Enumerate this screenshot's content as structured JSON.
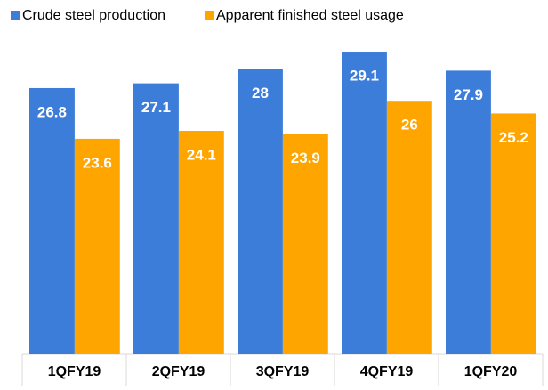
{
  "chart_data": {
    "type": "bar",
    "categories": [
      "1QFY19",
      "2QFY19",
      "3QFY19",
      "4QFY19",
      "1QFY20"
    ],
    "series": [
      {
        "name": "Crude steel production",
        "color": "#3c7dd9",
        "values": [
          26.8,
          27.1,
          28.0,
          29.1,
          27.9
        ]
      },
      {
        "name": "Apparent finished steel usage",
        "color": "#ffa500",
        "values": [
          23.6,
          24.1,
          23.9,
          26.0,
          25.2
        ]
      }
    ],
    "ylim": [
      10,
      30
    ],
    "legend": "top"
  }
}
